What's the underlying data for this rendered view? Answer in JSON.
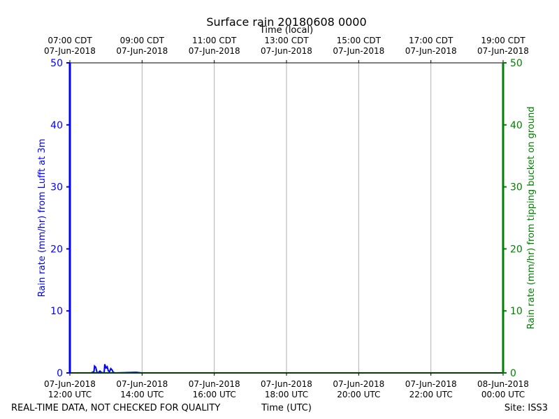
{
  "chart_data": {
    "type": "line",
    "title": "Surface rain 20180608 0000",
    "top_axis_label": "Time (local)",
    "xlabel": "Time (UTC)",
    "ylabel_left": "Rain rate (mm/hr) from Lufft at 3m",
    "ylabel_right": "Rain rate (mm/hr) from tipping bucket on ground",
    "ylim": [
      0,
      50
    ],
    "yticks": [
      0,
      10,
      20,
      30,
      40,
      50
    ],
    "xlim_hours_utc": [
      "2018-06-07 12:00",
      "2018-06-08 00:00"
    ],
    "grid": "vertical",
    "x_ticks_utc": [
      {
        "time": "2018-06-07 12:00",
        "date": "07-Jun-2018",
        "clock": "12:00 UTC"
      },
      {
        "time": "2018-06-07 14:00",
        "date": "07-Jun-2018",
        "clock": "14:00 UTC"
      },
      {
        "time": "2018-06-07 16:00",
        "date": "07-Jun-2018",
        "clock": "16:00 UTC"
      },
      {
        "time": "2018-06-07 18:00",
        "date": "07-Jun-2018",
        "clock": "18:00 UTC"
      },
      {
        "time": "2018-06-07 20:00",
        "date": "07-Jun-2018",
        "clock": "20:00 UTC"
      },
      {
        "time": "2018-06-07 22:00",
        "date": "07-Jun-2018",
        "clock": "22:00 UTC"
      },
      {
        "time": "2018-06-08 00:00",
        "date": "08-Jun-2018",
        "clock": "00:00 UTC"
      }
    ],
    "x_ticks_local": [
      {
        "time": "2018-06-07 12:00",
        "clock": "07:00 CDT",
        "date": "07-Jun-2018"
      },
      {
        "time": "2018-06-07 14:00",
        "clock": "09:00 CDT",
        "date": "07-Jun-2018"
      },
      {
        "time": "2018-06-07 16:00",
        "clock": "11:00 CDT",
        "date": "07-Jun-2018"
      },
      {
        "time": "2018-06-07 18:00",
        "clock": "13:00 CDT",
        "date": "07-Jun-2018"
      },
      {
        "time": "2018-06-07 20:00",
        "clock": "15:00 CDT",
        "date": "07-Jun-2018"
      },
      {
        "time": "2018-06-07 22:00",
        "clock": "17:00 CDT",
        "date": "07-Jun-2018"
      },
      {
        "time": "2018-06-08 00:00",
        "clock": "19:00 CDT",
        "date": "07-Jun-2018"
      }
    ],
    "series": [
      {
        "color": "#0000ff",
        "axis": "left",
        "x": [
          "2018-06-07 12:00",
          "2018-06-07 12:35",
          "2018-06-07 12:40",
          "2018-06-07 12:41",
          "2018-06-07 12:43",
          "2018-06-07 12:45",
          "2018-06-07 12:47",
          "2018-06-07 12:50",
          "2018-06-07 12:52",
          "2018-06-07 12:55",
          "2018-06-07 12:57",
          "2018-06-07 12:58",
          "2018-06-07 13:00",
          "2018-06-07 13:02",
          "2018-06-07 13:04",
          "2018-06-07 13:06",
          "2018-06-07 13:08",
          "2018-06-07 13:10",
          "2018-06-07 13:12",
          "2018-06-07 13:15",
          "2018-06-07 13:50",
          "2018-06-07 14:00",
          "2018-06-08 00:00"
        ],
        "y": [
          0,
          0,
          0.2,
          1.1,
          0.9,
          0.1,
          0.0,
          0.3,
          0.1,
          0.0,
          0.1,
          1.4,
          0.8,
          1.0,
          0.3,
          0.2,
          0.7,
          0.5,
          0.1,
          0.0,
          0.1,
          0,
          0
        ]
      },
      {
        "color": "#008000",
        "axis": "right",
        "x": [
          "2018-06-07 12:00",
          "2018-06-08 00:00"
        ],
        "y": [
          0,
          0
        ]
      }
    ]
  },
  "footer": {
    "left_note": "REAL-TIME DATA, NOT CHECKED FOR QUALITY",
    "site": "Site: ISS3"
  }
}
